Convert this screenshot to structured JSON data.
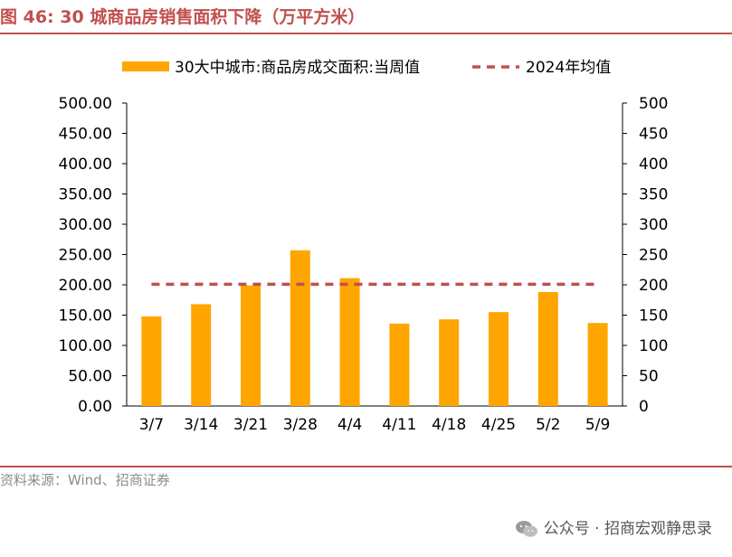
{
  "header": {
    "title": "图 46:  30 城商品房销售面积下降（万平方米）"
  },
  "footer": {
    "source": "资料来源：Wind、招商证券",
    "watermark": "公众号 · 招商宏观静思录"
  },
  "colors": {
    "accent": "#c0504d",
    "bar": "#ffa500",
    "avg_line": "#c0504d"
  },
  "icons": {
    "watermark": "wechat-icon"
  },
  "chart_data": {
    "type": "bar",
    "categories": [
      "3/7",
      "3/14",
      "3/21",
      "3/28",
      "4/4",
      "4/11",
      "4/18",
      "4/25",
      "5/2",
      "5/9"
    ],
    "series": [
      {
        "name": "30大中城市:商品房成交面积:当周值",
        "type": "bar",
        "values": [
          148,
          168,
          199,
          257,
          211,
          136,
          143,
          155,
          188,
          137
        ],
        "color": "#ffa500"
      },
      {
        "name": "2024年均值",
        "type": "line",
        "style": "dashed",
        "values": [
          201,
          201,
          201,
          201,
          201,
          201,
          201,
          201,
          201,
          201
        ],
        "color": "#c0504d"
      }
    ],
    "y_left": {
      "ylim": [
        0,
        500
      ],
      "ticks": [
        "0.00",
        "50.00",
        "100.00",
        "150.00",
        "200.00",
        "250.00",
        "300.00",
        "350.00",
        "400.00",
        "450.00",
        "500.00"
      ]
    },
    "y_right": {
      "ylim": [
        0,
        500
      ],
      "ticks": [
        "0",
        "50",
        "100",
        "150",
        "200",
        "250",
        "300",
        "350",
        "400",
        "450",
        "500"
      ]
    },
    "grid": false,
    "legend": "top"
  }
}
